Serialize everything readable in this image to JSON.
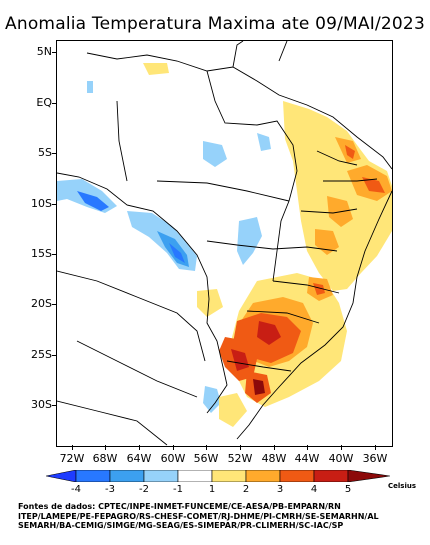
{
  "title": "Anomalia Temperatura Maxima ate 09/MAI/2023",
  "lat_labels": [
    "5N",
    "EQ",
    "5S",
    "10S",
    "15S",
    "20S",
    "25S",
    "30S"
  ],
  "lon_labels": [
    "72W",
    "68W",
    "64W",
    "60W",
    "56W",
    "52W",
    "48W",
    "44W",
    "40W",
    "36W"
  ],
  "colorbar": {
    "tick_labels": [
      "-4",
      "-3",
      "-2",
      "-1",
      "1",
      "2",
      "3",
      "4",
      "5"
    ],
    "unit": "Celsius",
    "colors": [
      "#1e3cff",
      "#2878ff",
      "#3ca0f0",
      "#96d2fa",
      "#ffffff",
      "#ffe678",
      "#ffaa2c",
      "#f05a14",
      "#c81e14",
      "#8c0a0a"
    ]
  },
  "sources": [
    "Fontes de dados: CPTEC/INPE-INMET-FUNCEME/CE-AESA/PB-EMPARN/RN",
    "ITEP/LAMEPE/PE-FEPAGRO/RS-CHESF-COMET/RJ-DHME/PI-CMRH/SE-SEMARHN/AL",
    "SEMARH/BA-CEMIG/SIMGE/MG-SEAG/ES-SIMEPAR/PR-CLIMERH/SC-IAC/SP"
  ]
}
